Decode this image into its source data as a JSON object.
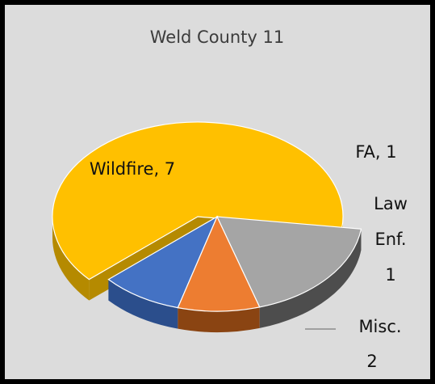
{
  "chart_data": {
    "type": "pie",
    "title": "Weld County 11",
    "style": "3d-exploded",
    "slices": [
      {
        "name": "Wildfire",
        "value": 7,
        "color": "#ffc000",
        "side_color": "#b58a00",
        "label_lines": [
          "Wildfire, 7"
        ]
      },
      {
        "name": "FA",
        "value": 1,
        "color": "#4472c4",
        "side_color": "#2b4e8c",
        "label_lines": [
          "FA, 1"
        ]
      },
      {
        "name": "Law Enf.",
        "value": 1,
        "color": "#ed7d31",
        "side_color": "#8a4412",
        "label_lines": [
          "Law",
          "Enf.",
          "1"
        ]
      },
      {
        "name": "Misc.",
        "value": 2,
        "color": "#a5a5a5",
        "side_color": "#4d4d4d",
        "label_lines": [
          "Misc.",
          "2"
        ]
      }
    ],
    "legend": "none"
  }
}
